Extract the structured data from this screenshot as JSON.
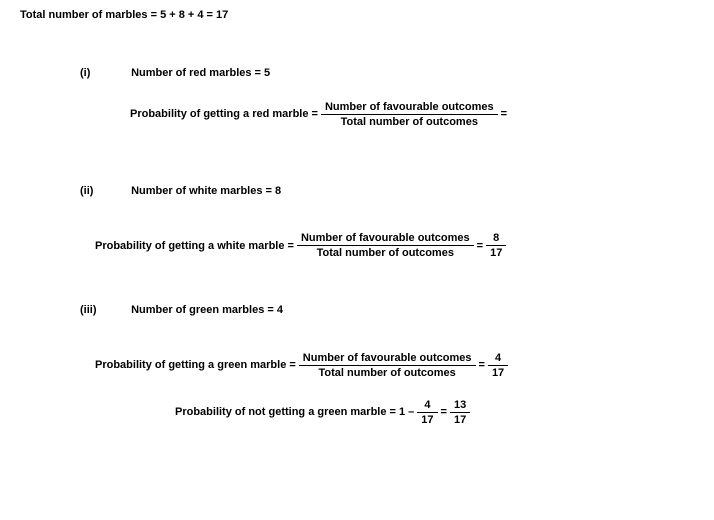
{
  "colors": {
    "text": "#000000",
    "background": "#ffffff",
    "rule": "#000000"
  },
  "font": {
    "family": "Verdana",
    "size_pt": 8,
    "weight": "bold"
  },
  "header": {
    "total_text": "Total number of marbles = 5 + 8 + 4 = 17"
  },
  "parts": {
    "i": {
      "roman": "(i)",
      "count_text": "Number of red marbles = 5",
      "prob_label": "Probability of getting a red marble =",
      "frac_num": "Number of favourable outcomes",
      "frac_den": "Total number of outcomes",
      "trail": "="
    },
    "ii": {
      "roman": "(ii)",
      "count_text": "Number of white marbles = 8",
      "prob_label": "Probability of getting a white marble =",
      "frac_num": "Number of favourable outcomes",
      "frac_den": "Total number of outcomes",
      "eq": "=",
      "result_num": "8",
      "result_den": "17"
    },
    "iii": {
      "roman": "(iii)",
      "count_text": "Number of green marbles = 4",
      "prob_label": "Probability of getting a green marble =",
      "frac_num": "Number of favourable outcomes",
      "frac_den": "Total number of outcomes",
      "eq": "=",
      "result_num": "4",
      "result_den": "17",
      "not_label": "Probability of not getting a green marble = 1 –",
      "not_frac_num": "4",
      "not_frac_den": "17",
      "not_eq": "=",
      "not_result_num": "13",
      "not_result_den": "17"
    }
  }
}
